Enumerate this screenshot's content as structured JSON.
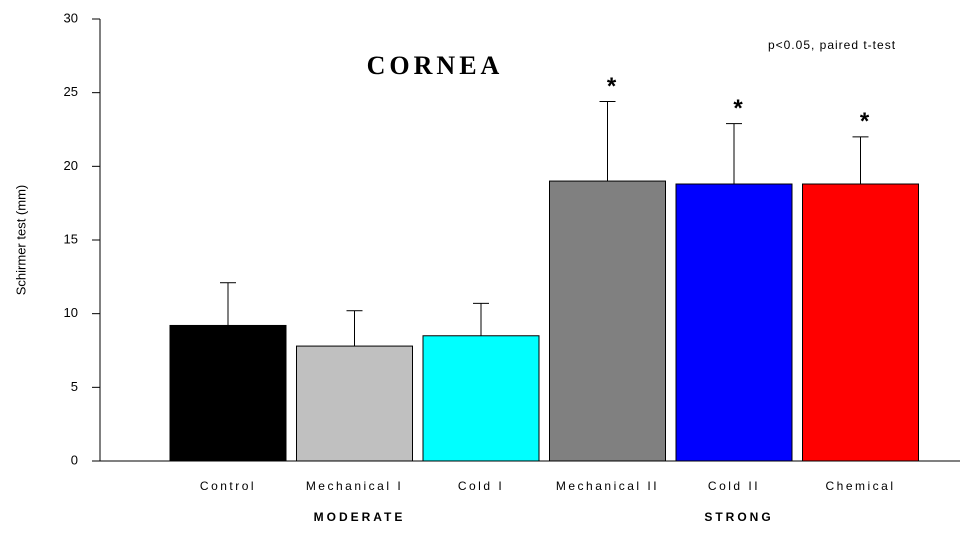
{
  "chart_data": {
    "type": "bar",
    "title": "CORNEA",
    "annotation": "p<0.05, paired t-test",
    "y_label": "Schirmer test (mm)",
    "categories": [
      "Control",
      "Mechanical I",
      "Cold I",
      "Mechanical II",
      "Cold II",
      "Chemical"
    ],
    "values": [
      9.2,
      7.8,
      8.5,
      19.0,
      18.8,
      18.8
    ],
    "errors": [
      2.9,
      2.4,
      2.2,
      5.4,
      4.1,
      3.2
    ],
    "colors": [
      "#000000",
      "#c0c0c0",
      "#00ffff",
      "#808080",
      "#0000ff",
      "#ff0000"
    ],
    "significance": [
      null,
      null,
      null,
      "*",
      "*",
      "*"
    ],
    "groups": [
      "MODERATE",
      "STRONG"
    ],
    "ylim": [
      0,
      30
    ],
    "yticks": [
      0,
      5,
      10,
      15,
      20,
      25,
      30
    ]
  }
}
